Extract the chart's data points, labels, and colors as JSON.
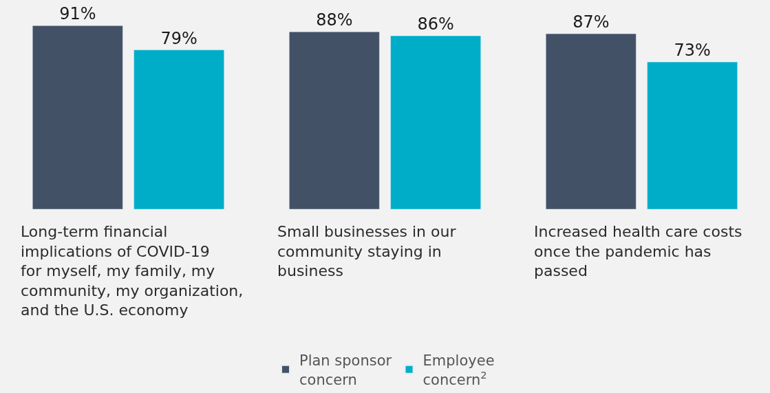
{
  "chart_data": {
    "type": "bar",
    "categories": [
      "Long-term financial implications of COVID-19 for myself, my family, my community, my organization, and the U.S. economy",
      "Small businesses in our community staying in business",
      "Increased health care costs once the pandemic has passed"
    ],
    "series": [
      {
        "name": "Plan sponsor concern",
        "color": "#435166",
        "values": [
          91,
          88,
          87
        ],
        "value_labels": [
          "91%",
          "88%",
          "87%"
        ]
      },
      {
        "name": "Employee concern$^{2}$",
        "color": "#00adc9",
        "values": [
          79,
          86,
          73
        ],
        "value_labels": [
          "79%",
          "86%",
          "73%"
        ]
      }
    ],
    "tick_labels": false,
    "legend": "bottom"
  }
}
